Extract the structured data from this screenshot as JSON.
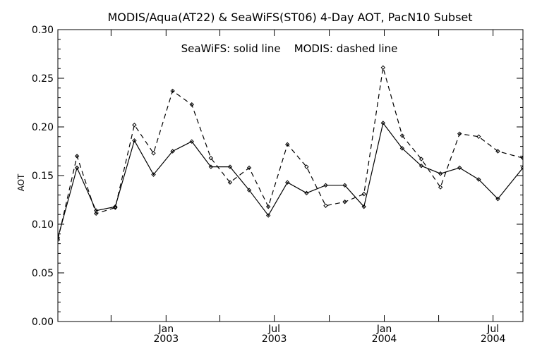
{
  "chart_data": {
    "type": "line",
    "title": "MODIS/Aqua(AT22) & SeaWiFS(ST06) 4-Day AOT, PacN10 Subset",
    "annotation": "SeaWiFS: solid line    MODIS: dashed line",
    "xlabel": "",
    "ylabel": "AOT",
    "ylim": [
      0.0,
      0.3
    ],
    "xlim": [
      "2002-07-04",
      "2004-08-20"
    ],
    "y_ticks": [
      "0.00",
      "0.05",
      "0.10",
      "0.15",
      "0.20",
      "0.25",
      "0.30"
    ],
    "x_ticks": [
      {
        "month": "Jan",
        "year": "2003",
        "date": "2003-01-01"
      },
      {
        "month": "Jul",
        "year": "2003",
        "date": "2003-07-01"
      },
      {
        "month": "Jan",
        "year": "2004",
        "date": "2004-01-01"
      },
      {
        "month": "Jul",
        "year": "2004",
        "date": "2004-07-01"
      }
    ],
    "grid": false,
    "series": [
      {
        "name": "SeaWiFS",
        "line_style": "solid",
        "color": "#000000",
        "points": [
          {
            "x": "2002-07-04",
            "y": 0.086
          },
          {
            "x": "2002-08-05",
            "y": 0.158
          },
          {
            "x": "2002-09-06",
            "y": 0.114
          },
          {
            "x": "2002-10-08",
            "y": 0.118
          },
          {
            "x": "2002-11-09",
            "y": 0.186
          },
          {
            "x": "2002-12-11",
            "y": 0.151
          },
          {
            "x": "2003-01-12",
            "y": 0.175
          },
          {
            "x": "2003-02-13",
            "y": 0.185
          },
          {
            "x": "2003-03-17",
            "y": 0.159
          },
          {
            "x": "2003-04-18",
            "y": 0.159
          },
          {
            "x": "2003-05-20",
            "y": 0.135
          },
          {
            "x": "2003-06-21",
            "y": 0.109
          },
          {
            "x": "2003-07-23",
            "y": 0.143
          },
          {
            "x": "2003-08-24",
            "y": 0.132
          },
          {
            "x": "2003-09-25",
            "y": 0.14
          },
          {
            "x": "2003-10-27",
            "y": 0.14
          },
          {
            "x": "2003-11-28",
            "y": 0.118
          },
          {
            "x": "2003-12-30",
            "y": 0.204
          },
          {
            "x": "2004-01-31",
            "y": 0.178
          },
          {
            "x": "2004-03-03",
            "y": 0.16
          },
          {
            "x": "2004-04-04",
            "y": 0.152
          },
          {
            "x": "2004-05-06",
            "y": 0.158
          },
          {
            "x": "2004-06-07",
            "y": 0.146
          },
          {
            "x": "2004-07-09",
            "y": 0.126
          },
          {
            "x": "2004-08-20",
            "y": 0.158
          }
        ]
      },
      {
        "name": "MODIS",
        "line_style": "dashed",
        "color": "#000000",
        "points": [
          {
            "x": "2002-07-04",
            "y": 0.084
          },
          {
            "x": "2002-08-05",
            "y": 0.17
          },
          {
            "x": "2002-09-06",
            "y": 0.111
          },
          {
            "x": "2002-10-08",
            "y": 0.117
          },
          {
            "x": "2002-11-09",
            "y": 0.202
          },
          {
            "x": "2002-12-11",
            "y": 0.173
          },
          {
            "x": "2003-01-12",
            "y": 0.237
          },
          {
            "x": "2003-02-13",
            "y": 0.223
          },
          {
            "x": "2003-03-17",
            "y": 0.168
          },
          {
            "x": "2003-04-18",
            "y": 0.143
          },
          {
            "x": "2003-05-20",
            "y": 0.158
          },
          {
            "x": "2003-06-21",
            "y": 0.118
          },
          {
            "x": "2003-07-23",
            "y": 0.182
          },
          {
            "x": "2003-08-24",
            "y": 0.159
          },
          {
            "x": "2003-09-25",
            "y": 0.119
          },
          {
            "x": "2003-10-27",
            "y": 0.123
          },
          {
            "x": "2003-11-28",
            "y": 0.131
          },
          {
            "x": "2003-12-30",
            "y": 0.261
          },
          {
            "x": "2004-01-31",
            "y": 0.191
          },
          {
            "x": "2004-03-03",
            "y": 0.167
          },
          {
            "x": "2004-04-04",
            "y": 0.138
          },
          {
            "x": "2004-05-06",
            "y": 0.193
          },
          {
            "x": "2004-06-07",
            "y": 0.19
          },
          {
            "x": "2004-07-09",
            "y": 0.175
          },
          {
            "x": "2004-08-20",
            "y": 0.168
          }
        ]
      }
    ]
  }
}
